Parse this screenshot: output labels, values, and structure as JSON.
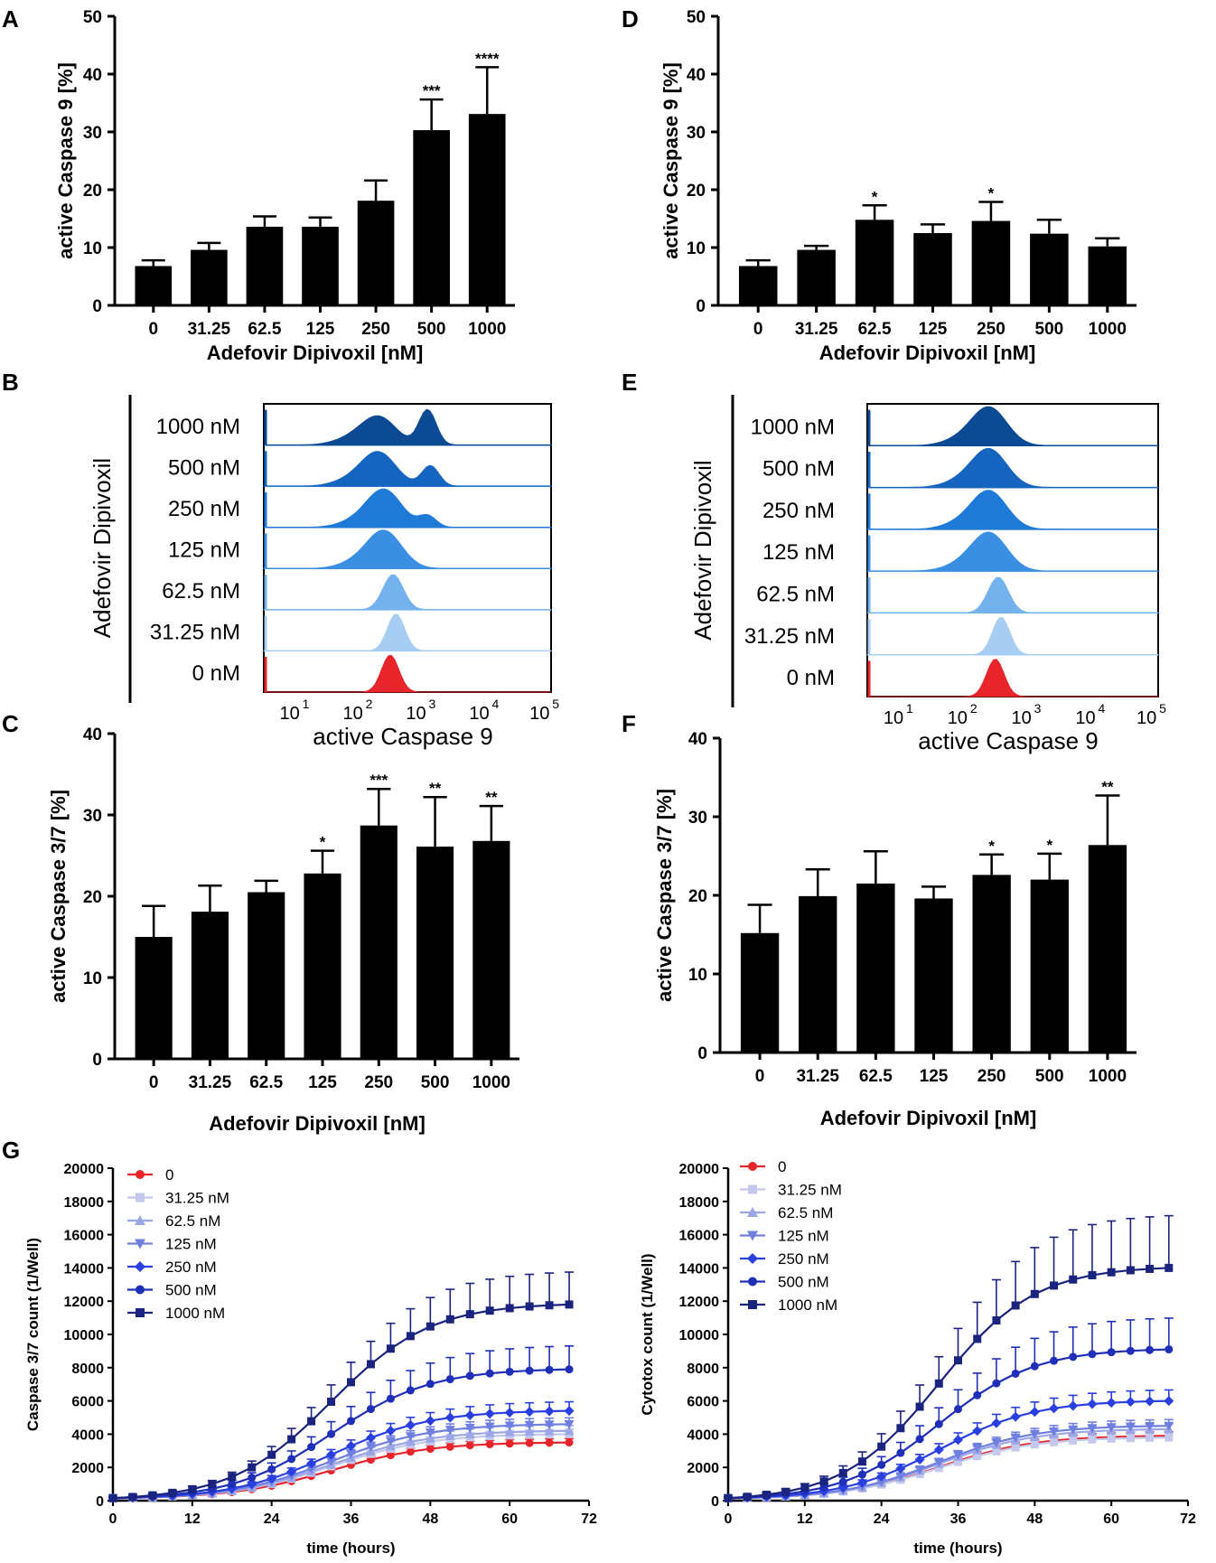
{
  "panel_labels": {
    "A": "A",
    "B": "B",
    "C": "C",
    "D": "D",
    "E": "E",
    "F": "F",
    "G": "G"
  },
  "chart_data": [
    {
      "panel": "A",
      "type": "bar",
      "categories": [
        "0",
        "31.25",
        "62.5",
        "125",
        "250",
        "500",
        "1000"
      ],
      "values": [
        6.8,
        9.6,
        13.6,
        13.6,
        18.1,
        30.3,
        33.1
      ],
      "errors": [
        1.0,
        1.2,
        1.8,
        1.6,
        3.5,
        5.3,
        8.1
      ],
      "significance": [
        "",
        "",
        "",
        "",
        "",
        "***",
        "****"
      ],
      "ylim": [
        0,
        50
      ],
      "yticks": [
        "0",
        "10",
        "20",
        "30",
        "40",
        "50"
      ],
      "ylabel": "active Caspase 9 [%]",
      "xlabel": "Adefovir Dipivoxil [nM]"
    },
    {
      "panel": "D",
      "type": "bar",
      "categories": [
        "0",
        "31.25",
        "62.5",
        "125",
        "250",
        "500",
        "1000"
      ],
      "values": [
        6.8,
        9.6,
        14.8,
        12.5,
        14.6,
        12.4,
        10.2
      ],
      "errors": [
        1.0,
        0.7,
        2.5,
        1.5,
        3.3,
        2.4,
        1.4
      ],
      "significance": [
        "",
        "",
        "*",
        "",
        "*",
        "",
        ""
      ],
      "ylim": [
        0,
        50
      ],
      "yticks": [
        "0",
        "10",
        "20",
        "30",
        "40",
        "50"
      ],
      "ylabel": "active Caspase 9 [%]",
      "xlabel": "Adefovir Dipivoxil [nM]"
    },
    {
      "panel": "C",
      "type": "bar",
      "categories": [
        "0",
        "31.25",
        "62.5",
        "125",
        "250",
        "500",
        "1000"
      ],
      "values": [
        15.0,
        18.1,
        20.5,
        22.8,
        28.7,
        26.1,
        26.8
      ],
      "errors": [
        3.8,
        3.2,
        1.4,
        2.8,
        4.5,
        6.1,
        4.3
      ],
      "significance": [
        "",
        "",
        "",
        "*",
        "***",
        "**",
        "**"
      ],
      "ylim": [
        0,
        40
      ],
      "yticks": [
        "0",
        "10",
        "20",
        "30",
        "40"
      ],
      "ylabel": "active Caspase 3/7 [%]",
      "xlabel": "Adefovir Dipivoxil [nM]"
    },
    {
      "panel": "F",
      "type": "bar",
      "categories": [
        "0",
        "31.25",
        "62.5",
        "125",
        "250",
        "500",
        "1000"
      ],
      "values": [
        15.2,
        19.9,
        21.5,
        19.6,
        22.6,
        22.0,
        26.4
      ],
      "errors": [
        3.6,
        3.4,
        4.1,
        1.5,
        2.6,
        3.3,
        6.3
      ],
      "significance": [
        "",
        "",
        "",
        "",
        "*",
        "*",
        "**"
      ],
      "ylim": [
        0,
        40
      ],
      "yticks": [
        "0",
        "10",
        "20",
        "30",
        "40"
      ],
      "ylabel": "active Caspase 3/7 [%]",
      "xlabel": "Adefovir Dipivoxil [nM]"
    },
    {
      "panel": "B",
      "type": "histogram-overlay",
      "rows": [
        "1000 nM",
        "500 nM",
        "250 nM",
        "125 nM",
        "62.5 nM",
        "31.25 nM",
        "0 nM"
      ],
      "row_colors": [
        "#0d4a94",
        "#1565c0",
        "#1e7ad6",
        "#3a8fe3",
        "#74b2ee",
        "#a8cdf3",
        "#e8252a"
      ],
      "row_label": "Adefovir Dipivoxil",
      "xlabel": "active Caspase 9",
      "decades": [
        "1",
        "2",
        "3",
        "4",
        "5"
      ]
    },
    {
      "panel": "E",
      "type": "histogram-overlay",
      "rows": [
        "1000 nM",
        "500 nM",
        "250 nM",
        "125 nM",
        "62.5 nM",
        "31.25 nM",
        "0 nM"
      ],
      "row_colors": [
        "#0d4a94",
        "#1565c0",
        "#1e7ad6",
        "#3a8fe3",
        "#74b2ee",
        "#a8cdf3",
        "#e8252a"
      ],
      "row_label": "Adefovir Dipivoxil",
      "xlabel": "active Caspase 9",
      "decades": [
        "1",
        "2",
        "3",
        "4",
        "5"
      ]
    },
    {
      "panel": "G-left",
      "type": "line",
      "ylabel": "Caspase 3/7 count (1/Well)",
      "xlabel": "time (hours)",
      "xlim": [
        0,
        72
      ],
      "ylim": [
        0,
        20000
      ],
      "xticks": [
        "0",
        "12",
        "24",
        "36",
        "48",
        "60",
        "72"
      ],
      "yticks": [
        "0",
        "2000",
        "4000",
        "6000",
        "8000",
        "10000",
        "12000",
        "14000",
        "16000",
        "18000",
        "20000"
      ],
      "series": [
        {
          "name": "0",
          "color": "#e8252a",
          "marker": "circle",
          "final": 3500,
          "sd_frac": 0.05
        },
        {
          "name": "31.25 nM",
          "color": "#c3c8ec",
          "marker": "square",
          "final": 4000,
          "sd_frac": 0.06
        },
        {
          "name": "62.5 nM",
          "color": "#9aa6e6",
          "marker": "triangle-up",
          "final": 4200,
          "sd_frac": 0.06
        },
        {
          "name": "125 nM",
          "color": "#6f7fe0",
          "marker": "triangle-down",
          "final": 4600,
          "sd_frac": 0.07
        },
        {
          "name": "250 nM",
          "color": "#2a3fe0",
          "marker": "diamond",
          "final": 5400,
          "sd_frac": 0.09
        },
        {
          "name": "500 nM",
          "color": "#1f2fb8",
          "marker": "circle",
          "final": 7900,
          "sd_frac": 0.17
        },
        {
          "name": "1000 nM",
          "color": "#1a237e",
          "marker": "square",
          "final": 11800,
          "sd_frac": 0.16
        }
      ]
    },
    {
      "panel": "G-right",
      "type": "line",
      "ylabel": "Cytotox count (1/Well)",
      "xlabel": "time (hours)",
      "xlim": [
        0,
        72
      ],
      "ylim": [
        0,
        20000
      ],
      "xticks": [
        "0",
        "12",
        "24",
        "36",
        "48",
        "60",
        "72"
      ],
      "yticks": [
        "0",
        "2000",
        "4000",
        "6000",
        "8000",
        "10000",
        "12000",
        "14000",
        "16000",
        "18000",
        "20000"
      ],
      "series": [
        {
          "name": "0",
          "color": "#e8252a",
          "marker": "circle",
          "final": 3900,
          "sd_frac": 0.05
        },
        {
          "name": "31.25 nM",
          "color": "#c3c8ec",
          "marker": "square",
          "final": 3800,
          "sd_frac": 0.06
        },
        {
          "name": "62.5 nM",
          "color": "#9aa6e6",
          "marker": "triangle-up",
          "final": 4300,
          "sd_frac": 0.06
        },
        {
          "name": "125 nM",
          "color": "#6f7fe0",
          "marker": "triangle-down",
          "final": 4500,
          "sd_frac": 0.07
        },
        {
          "name": "250 nM",
          "color": "#2a3fe0",
          "marker": "diamond",
          "final": 6000,
          "sd_frac": 0.1
        },
        {
          "name": "500 nM",
          "color": "#1f2fb8",
          "marker": "circle",
          "final": 9100,
          "sd_frac": 0.2
        },
        {
          "name": "1000 nM",
          "color": "#1a237e",
          "marker": "square",
          "final": 14000,
          "sd_frac": 0.22
        }
      ]
    }
  ]
}
